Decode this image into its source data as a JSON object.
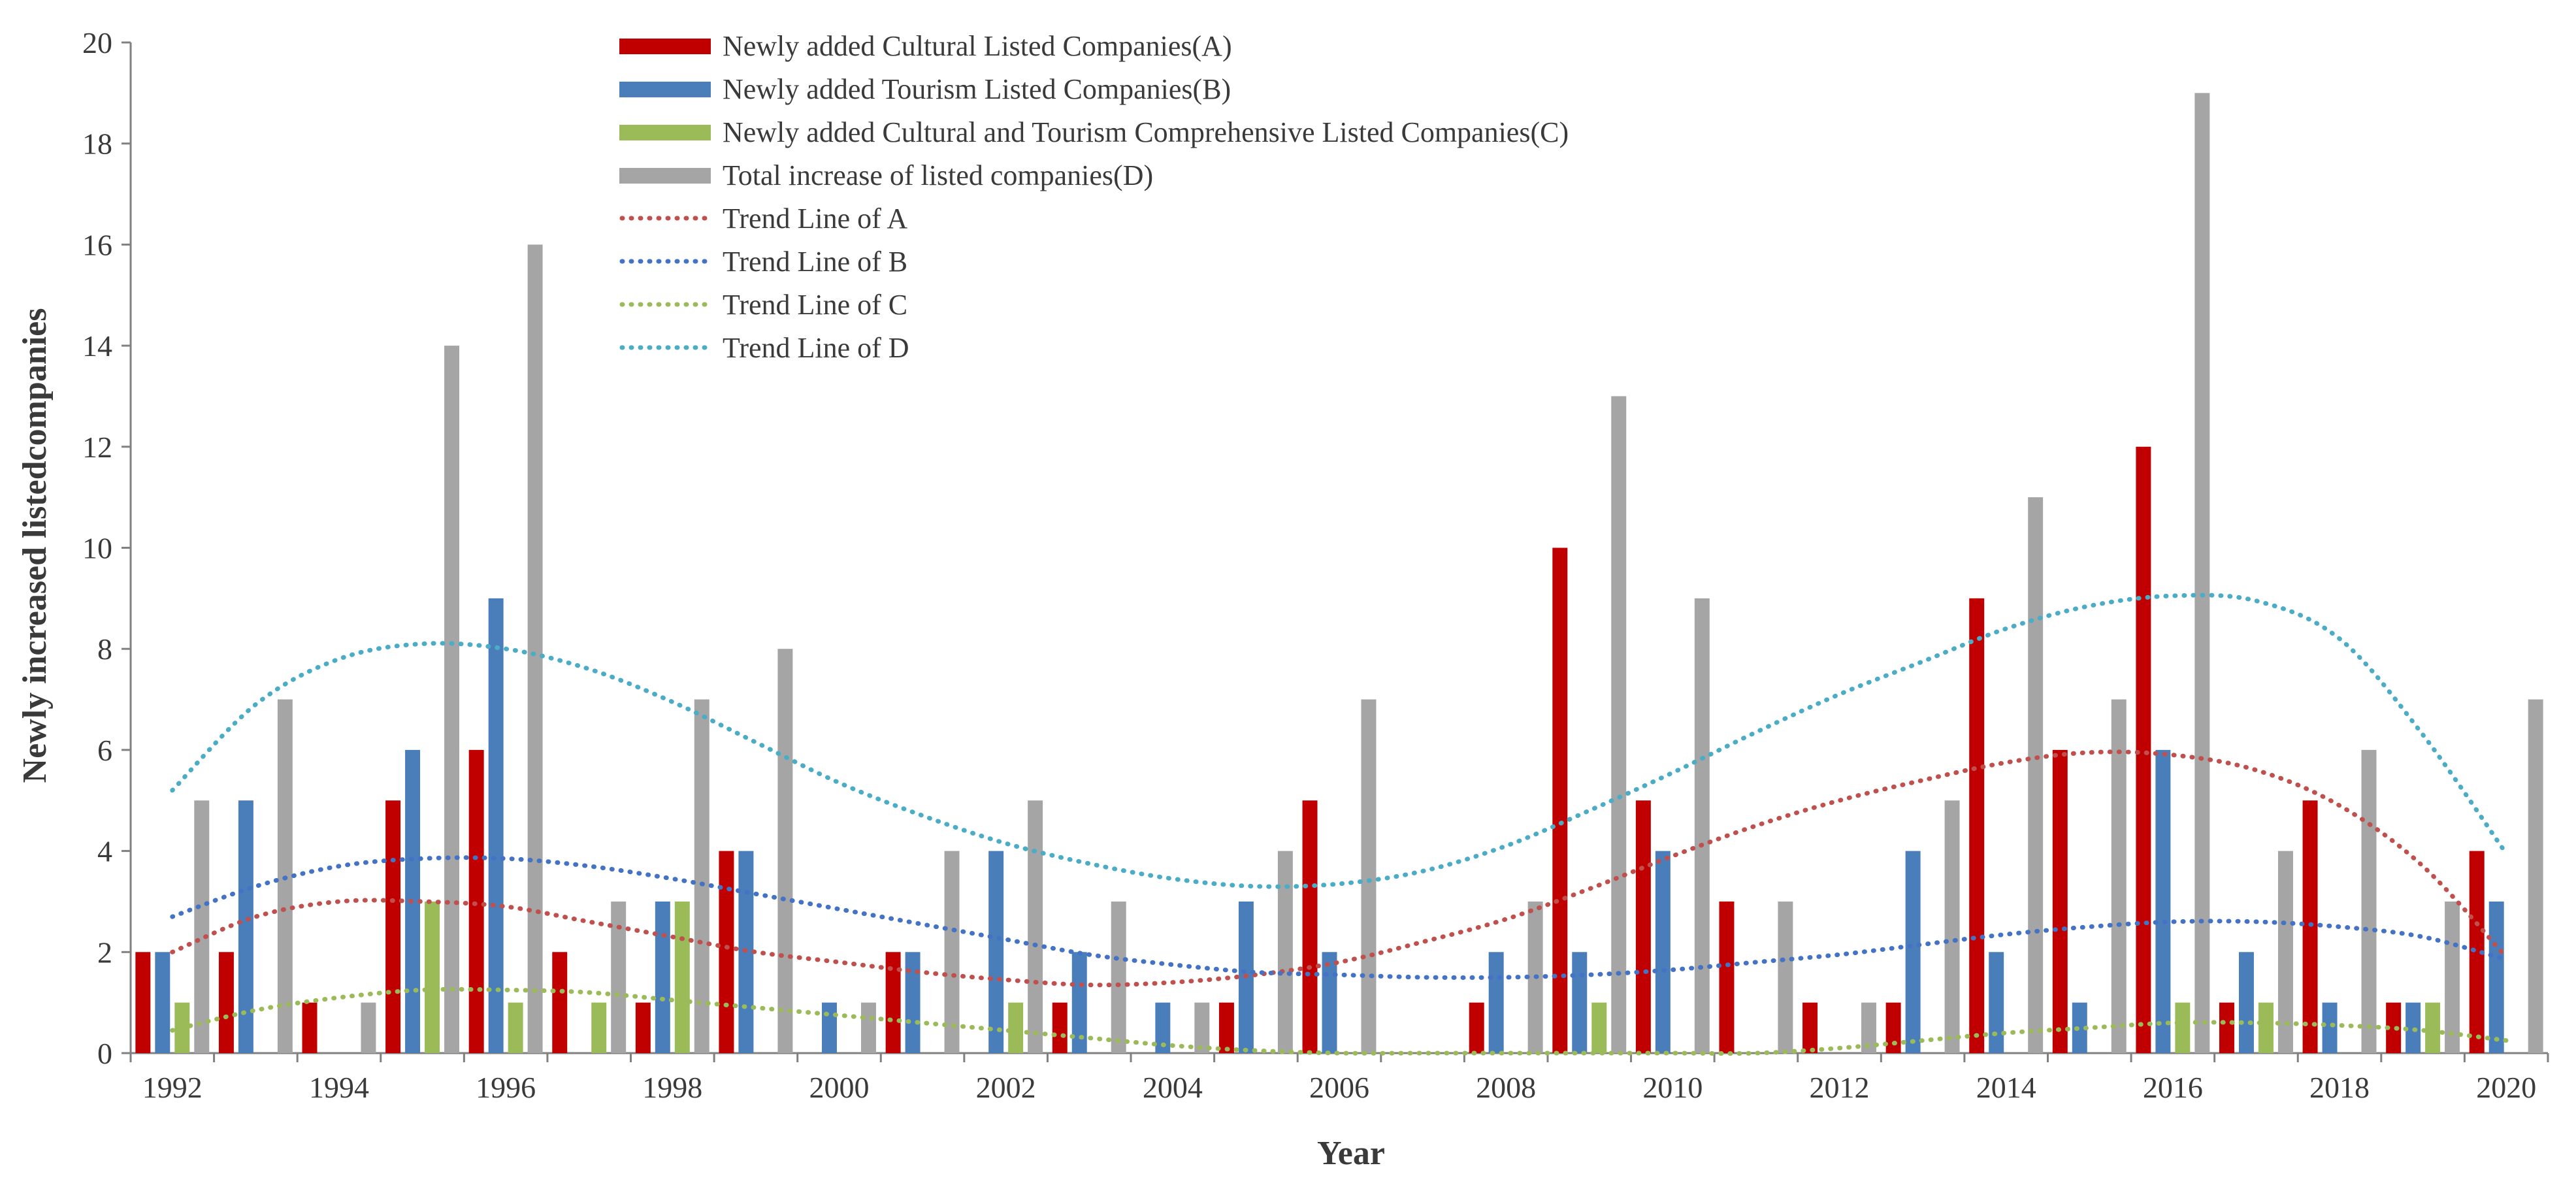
{
  "chart_data": {
    "type": "bar",
    "title": "",
    "xlabel": "Year",
    "ylabel": "Newly increased listedcompanies",
    "ylim": [
      0,
      20
    ],
    "yticks": [
      0,
      2,
      4,
      6,
      8,
      10,
      12,
      14,
      16,
      18,
      20
    ],
    "xtick_labels": [
      "1992",
      "1994",
      "1996",
      "1998",
      "2000",
      "2002",
      "2004",
      "2006",
      "2008",
      "2010",
      "2012",
      "2014",
      "2016",
      "2018",
      "2020"
    ],
    "categories": [
      "1992",
      "1993",
      "1994",
      "1995",
      "1996",
      "1997",
      "1998",
      "1999",
      "2000",
      "2001",
      "2002",
      "2003",
      "2004",
      "2005",
      "2006",
      "2007",
      "2008",
      "2009",
      "2010",
      "2011",
      "2012",
      "2013",
      "2014",
      "2015",
      "2016",
      "2017",
      "2018",
      "2019",
      "2020"
    ],
    "series": [
      {
        "name": "Newly added Cultural Listed Companies(A)",
        "color": "#c00000",
        "values": [
          2,
          2,
          1,
          5,
          6,
          2,
          1,
          4,
          0,
          2,
          0,
          1,
          0,
          1,
          5,
          0,
          1,
          10,
          5,
          3,
          1,
          1,
          9,
          6,
          12,
          1,
          5,
          1,
          4
        ]
      },
      {
        "name": "Newly added Tourism Listed Companies(B)",
        "color": "#4a7ebb",
        "values": [
          2,
          5,
          0,
          6,
          9,
          0,
          3,
          4,
          1,
          2,
          4,
          2,
          1,
          3,
          2,
          0,
          2,
          2,
          4,
          0,
          0,
          4,
          2,
          1,
          6,
          2,
          1,
          1,
          3
        ]
      },
      {
        "name": "Newly added Cultural and Tourism Comprehensive Listed Companies(C)",
        "color": "#9bbb59",
        "values": [
          1,
          0,
          0,
          3,
          1,
          1,
          3,
          0,
          0,
          0,
          1,
          0,
          0,
          0,
          0,
          0,
          0,
          1,
          0,
          0,
          0,
          0,
          0,
          0,
          1,
          1,
          0,
          1,
          0
        ]
      },
      {
        "name": "Total increase of listed companies(D)",
        "color": "#a5a5a5",
        "values": [
          5,
          7,
          1,
          14,
          16,
          3,
          7,
          8,
          1,
          4,
          5,
          3,
          1,
          4,
          7,
          0,
          3,
          13,
          9,
          3,
          1,
          5,
          11,
          7,
          19,
          4,
          6,
          3,
          7
        ]
      }
    ],
    "trend_lines": [
      {
        "name": "Trend Line of A",
        "color": "#c0504d",
        "values": [
          2.0,
          2.7,
          3.0,
          3.0,
          2.9,
          2.6,
          2.3,
          2.0,
          1.8,
          1.6,
          1.45,
          1.35,
          1.4,
          1.55,
          1.8,
          2.2,
          2.65,
          3.25,
          3.9,
          4.5,
          5.0,
          5.4,
          5.75,
          5.95,
          5.9,
          5.6,
          4.9,
          3.7,
          1.9
        ]
      },
      {
        "name": "Trend Line of B",
        "color": "#4472c4",
        "values": [
          2.7,
          3.3,
          3.7,
          3.85,
          3.85,
          3.7,
          3.45,
          3.15,
          2.85,
          2.55,
          2.25,
          1.95,
          1.75,
          1.6,
          1.55,
          1.5,
          1.5,
          1.55,
          1.65,
          1.8,
          1.95,
          2.15,
          2.35,
          2.5,
          2.6,
          2.6,
          2.5,
          2.3,
          1.85
        ]
      },
      {
        "name": "Trend Line of C",
        "color": "#9bbb59",
        "values": [
          0.45,
          0.85,
          1.1,
          1.25,
          1.25,
          1.2,
          1.05,
          0.9,
          0.75,
          0.6,
          0.45,
          0.3,
          0.15,
          0.05,
          0,
          0,
          0,
          0,
          0,
          0,
          0.1,
          0.25,
          0.4,
          0.5,
          0.6,
          0.6,
          0.55,
          0.45,
          0.25
        ]
      },
      {
        "name": "Trend Line of D",
        "color": "#4bacc6",
        "values": [
          5.2,
          6.9,
          7.8,
          8.1,
          8.0,
          7.6,
          6.95,
          6.15,
          5.35,
          4.7,
          4.15,
          3.75,
          3.45,
          3.3,
          3.35,
          3.6,
          4.1,
          4.8,
          5.55,
          6.35,
          7.1,
          7.75,
          8.4,
          8.85,
          9.05,
          8.95,
          8.2,
          6.3,
          3.95
        ]
      }
    ]
  }
}
